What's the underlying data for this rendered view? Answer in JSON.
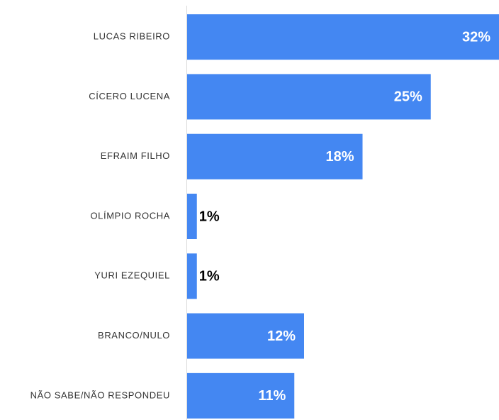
{
  "chart_data": {
    "type": "bar",
    "orientation": "horizontal",
    "categories": [
      "LUCAS RIBEIRO",
      "CÍCERO LUCENA",
      "EFRAIM FILHO",
      "OLÍMPIO ROCHA",
      "YURI EZEQUIEL",
      "BRANCO/NULO",
      "NÃO SABE/NÃO RESPONDEU"
    ],
    "values": [
      32,
      25,
      18,
      1,
      1,
      12,
      11
    ],
    "value_labels": [
      "32%",
      "25%",
      "18%",
      "1%",
      "1%",
      "12%",
      "11%"
    ],
    "color": "#4487f2",
    "xlim": [
      0,
      32
    ]
  }
}
